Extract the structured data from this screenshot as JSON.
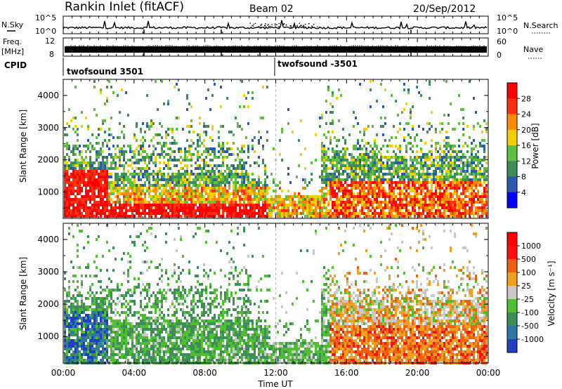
{
  "header": {
    "station": "Rankin Inlet (fitACF)",
    "beam": "Beam 02",
    "date": "20/Sep/2012"
  },
  "strip_labels": {
    "nsky": "N.Sky",
    "nsearch": "N.Search",
    "freq": "Freq.",
    "freq_unit": "[MHz]",
    "nave": "Nave",
    "cpid": "CPID",
    "nsky_ticks": [
      "10^5",
      "10^0"
    ],
    "nsearch_ticks": [
      "10^5",
      "10^0"
    ],
    "freq_ticks": [
      "12",
      "8"
    ],
    "nave_ticks": [
      "60",
      "0"
    ],
    "cpid_left": "twofsound 3501",
    "cpid_right": "twofsound -3501"
  },
  "chart_data": [
    {
      "type": "heatmap",
      "name": "power",
      "ylabel": "Slant Range [km]",
      "yticks": [
        "1000",
        "2000",
        "3000",
        "4000"
      ],
      "ylim": [
        180,
        4500
      ],
      "colorbar_label": "Power [dB]",
      "colorbar_ticks": [
        "4",
        "8",
        "12",
        "16",
        "20",
        "24",
        "28"
      ],
      "colors": [
        "#0000ff",
        "#2c58b0",
        "#3d8e58",
        "#5fc040",
        "#f2d000",
        "#ff8c00",
        "#ff3010",
        "#ff0000"
      ]
    },
    {
      "type": "heatmap",
      "name": "velocity",
      "ylabel": "Slant Range [km]",
      "yticks": [
        "1000",
        "2000",
        "3000",
        "4000"
      ],
      "ylim": [
        180,
        4500
      ],
      "colorbar_label": "Velocity [m s⁻¹]",
      "colorbar_ticks": [
        "1000",
        "500",
        "100",
        "25",
        "-25",
        "-100",
        "-500",
        "-1000"
      ],
      "colors": [
        "#2040c0",
        "#2c78a8",
        "#3d8e58",
        "#4ec030",
        "#c8c8c8",
        "#f0a020",
        "#f06010",
        "#ff1010",
        "#ff0000"
      ]
    }
  ],
  "xaxis": {
    "label": "Time UT",
    "ticks": [
      "00:00",
      "04:00",
      "08:00",
      "12:00",
      "16:00",
      "20:00",
      "00:00"
    ]
  }
}
